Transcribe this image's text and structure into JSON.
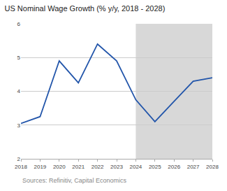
{
  "chart_data": {
    "type": "line",
    "title": "US Nominal Wage Growth (% y/y, 2018 - 2028)",
    "annotations": [
      "Sources: Refinitiv, Capital Economics"
    ],
    "x": [
      2018,
      2019,
      2020,
      2021,
      2022,
      2023,
      2024,
      2025,
      2026,
      2027,
      2028
    ],
    "values": [
      3.05,
      3.25,
      4.9,
      4.25,
      5.4,
      4.9,
      3.75,
      3.1,
      3.7,
      4.3,
      4.4
    ],
    "color": "#2255aa",
    "shade": {
      "from": 2024,
      "to": 2028,
      "color": "#d8d8d8"
    },
    "xlim": [
      2018,
      2028
    ],
    "xticks": [
      2018,
      2019,
      2020,
      2021,
      2022,
      2023,
      2024,
      2025,
      2026,
      2027,
      2028
    ],
    "ylim": [
      2,
      6
    ],
    "yticks": [
      2,
      3,
      4,
      5,
      6
    ],
    "grid": "y"
  }
}
